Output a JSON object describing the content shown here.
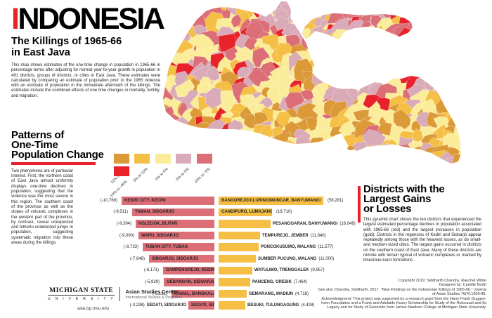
{
  "title": {
    "accent_letter": "I",
    "rest": "NDONESIA",
    "subtitle_line1": "The Killings of 1965-66",
    "subtitle_line2": "in East Java",
    "intro": "This map shows estimates of the one-time change in population in 1965-66 in percentage terms after adjusting for normal year-to-year growth in population in 491 districts, groups of districts, or cities in East Java. These estimates were calculated by comparing an estimate of population prior to the 1965 violence with an estimate of population in the immediate aftermath of the killings. The estimates include the combined effects of one time changes in mortality, fertility, and migration."
  },
  "patterns": {
    "heading_line1": "Patterns of",
    "heading_line2": "One-Time",
    "heading_line3": "Population Change",
    "body": "Two phenomena are of particular interest. First, the northern coast of East Java almost uniformly displays one-time declines in population, suggesting that the violence was the most severe in this region. The southern coast of the province as well as the slopes of volcanic complexes in the western part of the province, by contrast, reveal unexpected and hitherto undetected jumps in population, suggesting systematic migration into these areas during the killings."
  },
  "legend": {
    "items": [
      {
        "label": "10% to 49%",
        "color": "#DC9938"
      },
      {
        "label": "5% to 10%",
        "color": "#F5BE45"
      },
      {
        "label": "0% to 5%",
        "color": "#FBEC9A"
      },
      {
        "label": "-5% to 0%",
        "color": "#D9ABB8"
      },
      {
        "label": "-10% to -5%",
        "color": "#DB6E77"
      },
      {
        "label": "-10% to -49%",
        "color": "#E8222B"
      }
    ]
  },
  "districts_panel": {
    "heading_line1": "Districts with the",
    "heading_line2": "Largest Gains",
    "heading_line3": "or Losses",
    "body": "This pyramid chart shows the ten districts that experienced the largest estimated percentage declines in population associated with 1965-66 (red) and the largest increases in population (gold). Districts in the regencies of Kediri and Sidoarjo appear repeatedly among those with the heaviest losses, as do small- and medium-sized cities. The largest gains occurred in districts on the southern coast of East Java. Many of these districts are remote with terrain typical of volcanic complexes or marked by limestone karst formations."
  },
  "map": {
    "base_color": "#FBEC9A",
    "border_color": "rgba(255,255,255,0.55)"
  },
  "chart_data": {
    "type": "bar",
    "subtype": "population-pyramid",
    "loss_bar_color": "#DB6E77",
    "gain_bar_color": "#F5BE45",
    "rows": [
      {
        "loss_name": "KEDIRI CITY, KEDIRI",
        "loss_value": -10769,
        "loss_prefix": "(-10,769)",
        "loss_name_outside": "",
        "loss_len": 132,
        "gain_name": "BANGOREJO/CLURING/MUNCAR, BANYUWANGI",
        "gain_value": 58281,
        "gain_name_inside": "BANGOREJO/CLURING/MUNCAR, BANYUWANGI",
        "gain_name_after": "",
        "gain_value_after": "(58,281)",
        "gain_len": 149
      },
      {
        "loss_name": "TAMAN, SIDOARJO",
        "loss_value": -9511,
        "loss_prefix": "(-9,511)",
        "loss_name_outside": "",
        "loss_len": 117,
        "gain_name": "CANDIPURO, LUMAJANG",
        "gain_value": 19710,
        "gain_name_inside": "CANDIPURO, LUMAJANG",
        "gain_name_after": "",
        "gain_value_after": "(19,710)",
        "gain_len": 76
      },
      {
        "loss_name": "NGLEGOK, BLITAR",
        "loss_value": -9394,
        "loss_prefix": "(-9,394)",
        "loss_name_outside": "",
        "loss_len": 112,
        "gain_name": "PESANGGARAN, BANYUWANGI",
        "gain_value": 18049,
        "gain_name_inside": "",
        "gain_name_after": "PESANGGARAN, BANYUWANGI",
        "gain_value_after": "(18,049)",
        "gain_len": 74
      },
      {
        "loss_name": "WARU, SIDOARJO",
        "loss_value": -9090,
        "loss_prefix": "(-9,090)",
        "loss_name_outside": "",
        "loss_len": 108,
        "gain_name": "TEMPUREJO, JEMBER",
        "gain_value": 11840,
        "gain_name_inside": "",
        "gain_name_after": "TEMPUREJO, JEMBER",
        "gain_value_after": "(11,840)",
        "gain_len": 59
      },
      {
        "loss_name": "TUBAN CITY, TUBAN",
        "loss_value": -8733,
        "loss_prefix": "(-8,733)",
        "loss_name_outside": "",
        "loss_len": 102,
        "gain_name": "PONCOKUSUMO, MALANG",
        "gain_value": 11577,
        "gain_name_inside": "",
        "gain_name_after": "PONCOKUSUMO, MALANG",
        "gain_value_after": "(11,577)",
        "gain_len": 57
      },
      {
        "loss_name": "SIDOARJO, SIDOARJO",
        "loss_value": -7648,
        "loss_prefix": "(-7,648)",
        "loss_name_outside": "",
        "loss_len": 93,
        "gain_name": "SUMBER PUCUNG, MALANG",
        "gain_value": 11000,
        "gain_name_inside": "",
        "gain_name_after": "SUMBER PUCUNG, MALANG",
        "gain_value_after": "(11,000)",
        "gain_len": 53
      },
      {
        "loss_name": "GAMPENGREJO, KEDIRI",
        "loss_value": -6171,
        "loss_prefix": "(-6,171)",
        "loss_name_outside": "",
        "loss_len": 73,
        "gain_name": "WATULIMO, TRENGGALEK",
        "gain_value": 8957,
        "gain_name_inside": "",
        "gain_name_after": "WATULIMO, TRENGGALEK",
        "gain_value_after": "(8,957)",
        "gain_len": 48
      },
      {
        "loss_name": "GEDANGAN, SIDOARJO",
        "loss_value": -5929,
        "loss_prefix": "(-5,929)",
        "loss_name_outside": "",
        "loss_len": 72,
        "gain_name": "PANCENG, GRESIK",
        "gain_value": 7464,
        "gain_name_inside": "",
        "gain_name_after": "PANCENG, GRESIK",
        "gain_value_after": "(7,464)",
        "gain_len": 45
      },
      {
        "loss_name": "KAMAL, BANGKALAN",
        "loss_value": -5161,
        "loss_prefix": "(-5,161)",
        "loss_name_outside": "",
        "loss_len": 61,
        "gain_name": "GEMARANG, MADIUN",
        "gain_value": 4718,
        "gain_name_inside": "",
        "gain_name_after": "GEMARANG, MADIUN",
        "gain_value_after": "(4,718)",
        "gain_len": 40
      },
      {
        "loss_name": "SEDATI, SIDOARJO",
        "loss_value": -3238,
        "loss_prefix": "(-3,238)",
        "loss_name_outside": "SEDATI, SIDOARJO",
        "loss_len": 37,
        "gain_name": "BESUKI, TULUNGAGUNG",
        "gain_value": 4428,
        "gain_name_inside": "",
        "gain_name_after": "BESUKI, TULUNGAGUNG",
        "gain_value_after": "(4,428)",
        "gain_len": 38
      }
    ]
  },
  "footer": {
    "msu_line1": "MICHIGAN STATE",
    "msu_line2": "U N I V E R S I T Y",
    "center_name": "Asian Studies Center",
    "center_sub": "International Studies & Programs",
    "url": "asia.isp.msu.edu",
    "credits": [
      "Copyright 2019: Siddharth Chandra, Raechel White",
      "Designed by: Camille North",
      "See also Chandra, Siddharth. 2017. \"New Findings on the Indonesian Killings of 1965-66.\" Journal",
      "of Asian Studies 76(4):1059-86.",
      "Acknowledgment: This project was supported by a research grant from the Harry Frank Guggen-",
      "heim Foundation and a Frank and Adelaide Kussy Scholarship for Study of the Holocaust and Its",
      "Legacy and for Study of Genocide from James Madison College at Michigan State University."
    ]
  }
}
